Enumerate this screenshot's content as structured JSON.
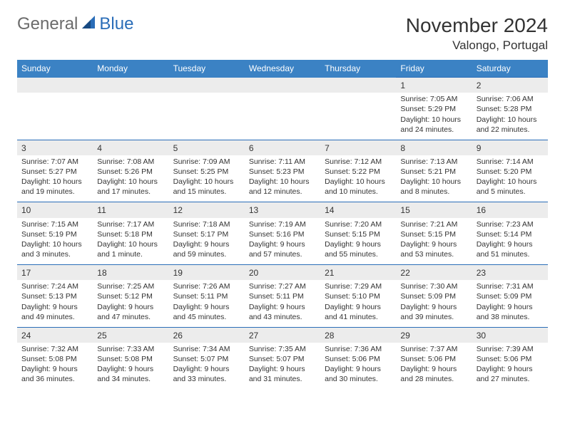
{
  "brand": {
    "general": "General",
    "blue": "Blue"
  },
  "title": "November 2024",
  "location": "Valongo, Portugal",
  "header_color": "#3b82c4",
  "divider_color": "#2a6db8",
  "shade_color": "#ececec",
  "text_color": "#333333",
  "day_headers": [
    "Sunday",
    "Monday",
    "Tuesday",
    "Wednesday",
    "Thursday",
    "Friday",
    "Saturday"
  ],
  "weeks": [
    {
      "nums": [
        "",
        "",
        "",
        "",
        "",
        "1",
        "2"
      ],
      "cells": [
        "",
        "",
        "",
        "",
        "",
        "Sunrise: 7:05 AM\nSunset: 5:29 PM\nDaylight: 10 hours and 24 minutes.",
        "Sunrise: 7:06 AM\nSunset: 5:28 PM\nDaylight: 10 hours and 22 minutes."
      ]
    },
    {
      "nums": [
        "3",
        "4",
        "5",
        "6",
        "7",
        "8",
        "9"
      ],
      "cells": [
        "Sunrise: 7:07 AM\nSunset: 5:27 PM\nDaylight: 10 hours and 19 minutes.",
        "Sunrise: 7:08 AM\nSunset: 5:26 PM\nDaylight: 10 hours and 17 minutes.",
        "Sunrise: 7:09 AM\nSunset: 5:25 PM\nDaylight: 10 hours and 15 minutes.",
        "Sunrise: 7:11 AM\nSunset: 5:23 PM\nDaylight: 10 hours and 12 minutes.",
        "Sunrise: 7:12 AM\nSunset: 5:22 PM\nDaylight: 10 hours and 10 minutes.",
        "Sunrise: 7:13 AM\nSunset: 5:21 PM\nDaylight: 10 hours and 8 minutes.",
        "Sunrise: 7:14 AM\nSunset: 5:20 PM\nDaylight: 10 hours and 5 minutes."
      ]
    },
    {
      "nums": [
        "10",
        "11",
        "12",
        "13",
        "14",
        "15",
        "16"
      ],
      "cells": [
        "Sunrise: 7:15 AM\nSunset: 5:19 PM\nDaylight: 10 hours and 3 minutes.",
        "Sunrise: 7:17 AM\nSunset: 5:18 PM\nDaylight: 10 hours and 1 minute.",
        "Sunrise: 7:18 AM\nSunset: 5:17 PM\nDaylight: 9 hours and 59 minutes.",
        "Sunrise: 7:19 AM\nSunset: 5:16 PM\nDaylight: 9 hours and 57 minutes.",
        "Sunrise: 7:20 AM\nSunset: 5:15 PM\nDaylight: 9 hours and 55 minutes.",
        "Sunrise: 7:21 AM\nSunset: 5:15 PM\nDaylight: 9 hours and 53 minutes.",
        "Sunrise: 7:23 AM\nSunset: 5:14 PM\nDaylight: 9 hours and 51 minutes."
      ]
    },
    {
      "nums": [
        "17",
        "18",
        "19",
        "20",
        "21",
        "22",
        "23"
      ],
      "cells": [
        "Sunrise: 7:24 AM\nSunset: 5:13 PM\nDaylight: 9 hours and 49 minutes.",
        "Sunrise: 7:25 AM\nSunset: 5:12 PM\nDaylight: 9 hours and 47 minutes.",
        "Sunrise: 7:26 AM\nSunset: 5:11 PM\nDaylight: 9 hours and 45 minutes.",
        "Sunrise: 7:27 AM\nSunset: 5:11 PM\nDaylight: 9 hours and 43 minutes.",
        "Sunrise: 7:29 AM\nSunset: 5:10 PM\nDaylight: 9 hours and 41 minutes.",
        "Sunrise: 7:30 AM\nSunset: 5:09 PM\nDaylight: 9 hours and 39 minutes.",
        "Sunrise: 7:31 AM\nSunset: 5:09 PM\nDaylight: 9 hours and 38 minutes."
      ]
    },
    {
      "nums": [
        "24",
        "25",
        "26",
        "27",
        "28",
        "29",
        "30"
      ],
      "cells": [
        "Sunrise: 7:32 AM\nSunset: 5:08 PM\nDaylight: 9 hours and 36 minutes.",
        "Sunrise: 7:33 AM\nSunset: 5:08 PM\nDaylight: 9 hours and 34 minutes.",
        "Sunrise: 7:34 AM\nSunset: 5:07 PM\nDaylight: 9 hours and 33 minutes.",
        "Sunrise: 7:35 AM\nSunset: 5:07 PM\nDaylight: 9 hours and 31 minutes.",
        "Sunrise: 7:36 AM\nSunset: 5:06 PM\nDaylight: 9 hours and 30 minutes.",
        "Sunrise: 7:37 AM\nSunset: 5:06 PM\nDaylight: 9 hours and 28 minutes.",
        "Sunrise: 7:39 AM\nSunset: 5:06 PM\nDaylight: 9 hours and 27 minutes."
      ]
    }
  ]
}
